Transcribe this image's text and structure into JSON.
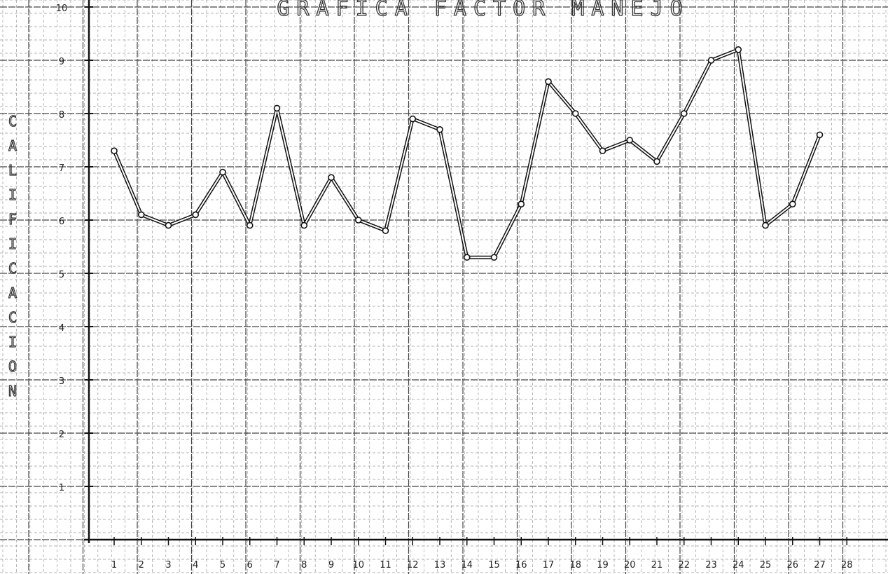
{
  "chart_data": {
    "type": "line",
    "title": "GRAFICA FACTOR MANEJO",
    "ylabel": "CALIFICACION",
    "xlabel": "",
    "ylim": [
      0,
      10
    ],
    "xlim": [
      1,
      28
    ],
    "grid": true,
    "x_ticks": [
      "1",
      "2",
      "3",
      "4",
      "5",
      "6",
      "7",
      "8",
      "9",
      "10",
      "11",
      "12",
      "13",
      "14",
      "15",
      "16",
      "17",
      "18",
      "19",
      "20",
      "21",
      "22",
      "23",
      "24",
      "25",
      "26",
      "27",
      "28"
    ],
    "y_ticks": [
      "1",
      "2",
      "3",
      "4",
      "5",
      "6",
      "7",
      "8",
      "9",
      "10"
    ],
    "series": [
      {
        "x": [
          1,
          2,
          3,
          4,
          5,
          6,
          7,
          8,
          9,
          10,
          11,
          12,
          13,
          14,
          15,
          16,
          17,
          18,
          19,
          20,
          21,
          22,
          23,
          24,
          25,
          26,
          27
        ],
        "values": [
          7.3,
          6.1,
          5.9,
          6.1,
          6.9,
          5.9,
          8.1,
          5.9,
          6.8,
          6.0,
          5.8,
          7.9,
          7.7,
          5.3,
          5.3,
          6.3,
          8.6,
          8.0,
          7.3,
          7.5,
          7.1,
          8.0,
          9.0,
          9.2,
          5.9,
          6.3,
          7.6
        ]
      }
    ]
  }
}
